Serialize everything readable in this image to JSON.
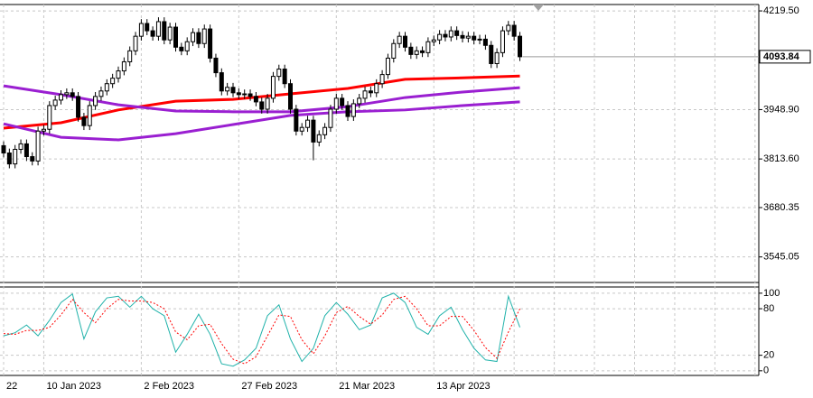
{
  "chart_data": [
    {
      "type": "candlestick",
      "categories": [
        "22",
        null,
        null,
        null,
        null,
        null,
        null,
        "10 Jan 2023",
        null,
        null,
        null,
        null,
        null,
        null,
        null,
        null,
        null,
        null,
        null,
        null,
        null,
        null,
        null,
        null,
        "2 Feb 2023",
        null,
        null,
        null,
        null,
        null,
        null,
        null,
        null,
        null,
        null,
        null,
        null,
        null,
        null,
        null,
        null,
        "27 Feb 2023",
        null,
        null,
        null,
        null,
        null,
        null,
        null,
        null,
        null,
        null,
        null,
        null,
        null,
        null,
        null,
        null,
        "21 Mar 2023",
        null,
        null,
        null,
        null,
        null,
        null,
        null,
        null,
        null,
        null,
        null,
        null,
        null,
        null,
        null,
        null,
        "13 Apr 2023",
        null,
        null,
        null,
        null,
        null,
        null,
        null,
        null,
        null,
        null,
        null,
        null,
        null,
        null,
        null
      ],
      "ohlc": [
        [
          3850,
          3862,
          3818,
          3830
        ],
        [
          3830,
          3842,
          3788,
          3800
        ],
        [
          3800,
          3852,
          3788,
          3840
        ],
        [
          3840,
          3867,
          3828,
          3855
        ],
        [
          3855,
          3867,
          3808,
          3820
        ],
        [
          3820,
          3832,
          3796,
          3808
        ],
        [
          3808,
          3902,
          3796,
          3890
        ],
        [
          3890,
          3907,
          3878,
          3895
        ],
        [
          3895,
          3972,
          3883,
          3960
        ],
        [
          3960,
          3987,
          3948,
          3975
        ],
        [
          3975,
          4002,
          3963,
          3990
        ],
        [
          3990,
          4007,
          3978,
          3995
        ],
        [
          3995,
          4007,
          3973,
          3985
        ],
        [
          3985,
          3997,
          3916,
          3928
        ],
        [
          3928,
          3940,
          3893,
          3905
        ],
        [
          3905,
          3972,
          3893,
          3960
        ],
        [
          3960,
          3997,
          3948,
          3985
        ],
        [
          3985,
          4012,
          3973,
          4000
        ],
        [
          4000,
          4032,
          3988,
          4020
        ],
        [
          4020,
          4047,
          4008,
          4035
        ],
        [
          4035,
          4067,
          4023,
          4055
        ],
        [
          4055,
          4092,
          4043,
          4080
        ],
        [
          4080,
          4122,
          4068,
          4110
        ],
        [
          4110,
          4162,
          4098,
          4150
        ],
        [
          4150,
          4197,
          4138,
          4185
        ],
        [
          4185,
          4197,
          4153,
          4165
        ],
        [
          4165,
          4177,
          4138,
          4150
        ],
        [
          4150,
          4202,
          4138,
          4190
        ],
        [
          4190,
          4202,
          4128,
          4140
        ],
        [
          4140,
          4187,
          4128,
          4175
        ],
        [
          4175,
          4187,
          4108,
          4120
        ],
        [
          4120,
          4132,
          4098,
          4110
        ],
        [
          4110,
          4147,
          4098,
          4135
        ],
        [
          4135,
          4172,
          4123,
          4160
        ],
        [
          4160,
          4172,
          4118,
          4130
        ],
        [
          4130,
          4182,
          4118,
          4170
        ],
        [
          4170,
          4182,
          4078,
          4090
        ],
        [
          4090,
          4102,
          4038,
          4050
        ],
        [
          4050,
          4062,
          3988,
          4000
        ],
        [
          4000,
          4022,
          3988,
          4010
        ],
        [
          4010,
          4022,
          3983,
          3995
        ],
        [
          3995,
          4007,
          3978,
          3990
        ],
        [
          3990,
          4004,
          3978,
          3992
        ],
        [
          3992,
          4004,
          3973,
          3985
        ],
        [
          3985,
          3997,
          3958,
          3970
        ],
        [
          3970,
          3982,
          3938,
          3950
        ],
        [
          3950,
          3992,
          3938,
          3980
        ],
        [
          3980,
          4052,
          3968,
          4040
        ],
        [
          4040,
          4072,
          4028,
          4060
        ],
        [
          4060,
          4072,
          4008,
          4020
        ],
        [
          4020,
          4032,
          3938,
          3950
        ],
        [
          3950,
          3962,
          3878,
          3890
        ],
        [
          3890,
          3912,
          3878,
          3900
        ],
        [
          3900,
          3932,
          3888,
          3920
        ],
        [
          3920,
          3932,
          3810,
          3860
        ],
        [
          3860,
          3892,
          3848,
          3880
        ],
        [
          3880,
          3912,
          3868,
          3900
        ],
        [
          3900,
          3962,
          3888,
          3950
        ],
        [
          3950,
          3992,
          3938,
          3980
        ],
        [
          3980,
          3992,
          3948,
          3960
        ],
        [
          3960,
          3972,
          3918,
          3930
        ],
        [
          3930,
          3977,
          3918,
          3965
        ],
        [
          3965,
          3992,
          3953,
          3980
        ],
        [
          3980,
          4012,
          3968,
          4000
        ],
        [
          4000,
          4012,
          3983,
          3995
        ],
        [
          3995,
          4032,
          3983,
          4020
        ],
        [
          4020,
          4057,
          4008,
          4045
        ],
        [
          4045,
          4102,
          4033,
          4090
        ],
        [
          4090,
          4142,
          4078,
          4130
        ],
        [
          4130,
          4162,
          4118,
          4150
        ],
        [
          4150,
          4162,
          4108,
          4120
        ],
        [
          4120,
          4132,
          4088,
          4100
        ],
        [
          4100,
          4122,
          4088,
          4110
        ],
        [
          4110,
          4122,
          4093,
          4105
        ],
        [
          4105,
          4147,
          4093,
          4135
        ],
        [
          4135,
          4152,
          4123,
          4140
        ],
        [
          4140,
          4167,
          4128,
          4155
        ],
        [
          4155,
          4167,
          4136,
          4148
        ],
        [
          4148,
          4177,
          4136,
          4165
        ],
        [
          4165,
          4177,
          4140,
          4152
        ],
        [
          4152,
          4164,
          4133,
          4145
        ],
        [
          4145,
          4162,
          4133,
          4150
        ],
        [
          4150,
          4162,
          4128,
          4140
        ],
        [
          4140,
          4154,
          4128,
          4142
        ],
        [
          4142,
          4154,
          4113,
          4125
        ],
        [
          4125,
          4137,
          4063,
          4075
        ],
        [
          4075,
          4117,
          4063,
          4105
        ],
        [
          4105,
          4177,
          4093,
          4165
        ],
        [
          4165,
          4192,
          4153,
          4180
        ],
        [
          4180,
          4192,
          4138,
          4150
        ],
        [
          4150,
          4162,
          4082,
          4093.84
        ]
      ],
      "up_color": "#ffffff",
      "down_color": "#000000",
      "lines": [
        {
          "color": "#ff0000",
          "x": [
            0,
            10,
            20,
            30,
            40,
            50,
            60,
            70,
            80,
            90
          ],
          "values": [
            3898,
            3913,
            3948,
            3972,
            3977,
            3992,
            4007,
            4032,
            4036,
            4041
          ]
        },
        {
          "color": "#9a1fd1",
          "x": [
            0,
            10,
            20,
            30,
            40,
            50,
            60,
            70,
            80,
            90
          ],
          "values": [
            4014,
            3990,
            3962,
            3945,
            3943,
            3943,
            3957,
            3982,
            3997,
            4009
          ]
        },
        {
          "color": "#9a1fd1",
          "x": [
            0,
            10,
            20,
            30,
            40,
            50,
            60,
            70,
            80,
            90
          ],
          "values": [
            3910,
            3873,
            3866,
            3883,
            3908,
            3933,
            3943,
            3948,
            3960,
            3970
          ]
        }
      ],
      "ylim": [
        3475,
        4237
      ],
      "yticks": [
        {
          "value": 4219.5,
          "label": "4219.50"
        },
        {
          "value": 3948.9,
          "label": "3948.90"
        },
        {
          "value": 3813.6,
          "label": "3813.60"
        },
        {
          "value": 3680.35,
          "label": "3680.35"
        },
        {
          "value": 3545.05,
          "label": "3545.05"
        }
      ],
      "grid": true
    },
    {
      "type": "line",
      "series": [
        {
          "color": "#20b2aa",
          "x": [
            0,
            2,
            4,
            6,
            8,
            10,
            12,
            14,
            16,
            18,
            20,
            22,
            24,
            26,
            28,
            30,
            32,
            34,
            36,
            38,
            40,
            42,
            44,
            46,
            48,
            50,
            52,
            54,
            56,
            58,
            60,
            62,
            64,
            66,
            68,
            70,
            72,
            74,
            76,
            78,
            80,
            82,
            84,
            86,
            88,
            90
          ],
          "values": [
            45,
            49,
            59,
            45,
            65,
            88,
            99,
            41,
            76,
            94,
            96,
            82,
            96,
            80,
            71,
            24,
            47,
            73,
            47,
            9,
            6,
            14,
            29,
            71,
            85,
            41,
            12,
            29,
            71,
            88,
            73,
            53,
            59,
            94,
            100,
            88,
            56,
            47,
            71,
            82,
            53,
            29,
            14,
            12,
            96,
            56
          ]
        },
        {
          "color": "#ff0000",
          "dashed": true,
          "x": [
            0,
            2,
            4,
            6,
            8,
            10,
            12,
            14,
            16,
            18,
            20,
            22,
            24,
            26,
            28,
            30,
            32,
            34,
            36,
            38,
            40,
            42,
            44,
            46,
            48,
            50,
            52,
            54,
            56,
            58,
            60,
            62,
            64,
            66,
            68,
            70,
            72,
            74,
            76,
            78,
            80,
            82,
            84,
            86,
            88,
            90
          ],
          "values": [
            48,
            47,
            52,
            52,
            56,
            72,
            92,
            75,
            62,
            80,
            92,
            90,
            90,
            88,
            80,
            50,
            40,
            58,
            60,
            35,
            15,
            9,
            18,
            45,
            72,
            70,
            40,
            22,
            45,
            75,
            83,
            70,
            60,
            72,
            92,
            96,
            80,
            58,
            58,
            70,
            70,
            52,
            30,
            16,
            50,
            80
          ]
        }
      ],
      "ylim": [
        -6,
        108
      ],
      "yticks": [
        100,
        80,
        20,
        0
      ],
      "grid": true
    }
  ]
}
